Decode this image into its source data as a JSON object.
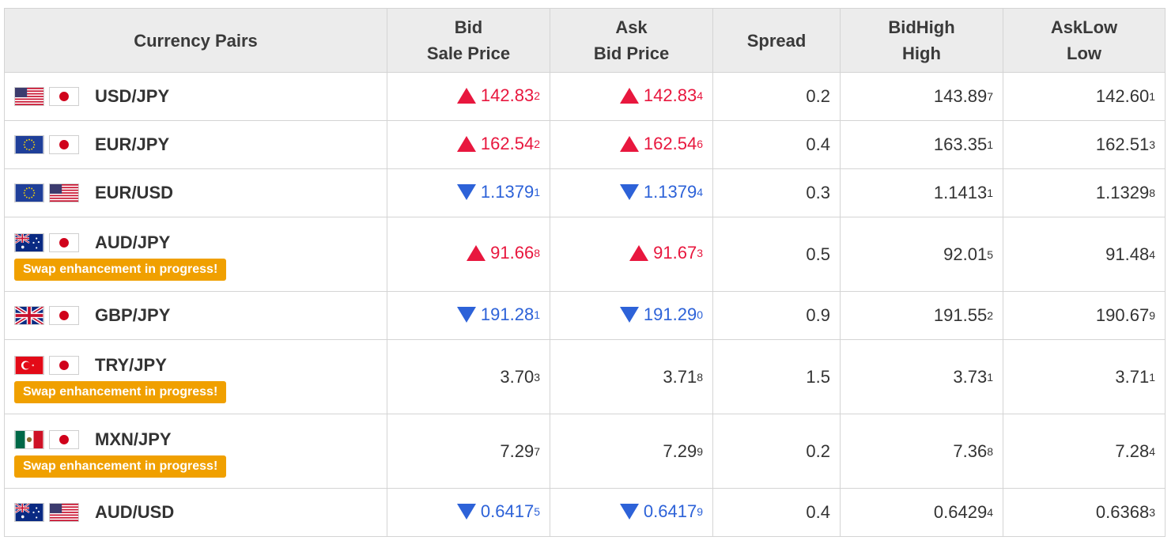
{
  "headers": {
    "pairs": "Currency Pairs",
    "bid_l1": "Bid",
    "bid_l2": "Sale Price",
    "ask_l1": "Ask",
    "ask_l2": "Bid Price",
    "spread": "Spread",
    "bidhigh_l1": "BidHigh",
    "bidhigh_l2": "High",
    "asklow_l1": "AskLow",
    "asklow_l2": "Low"
  },
  "badge_text": "Swap enhancement in progress!",
  "colors": {
    "up": "#e8173e",
    "down": "#2d62d8",
    "badge": "#f0a000"
  },
  "rows": [
    {
      "pair": "USD/JPY",
      "flags": [
        "us-flag-icon",
        "jp-flag-icon"
      ],
      "badge": false,
      "bid": {
        "main": "142.83",
        "pip": "2",
        "dir": "up"
      },
      "ask": {
        "main": "142.83",
        "pip": "4",
        "dir": "up"
      },
      "spread": "0.2",
      "high": {
        "main": "143.89",
        "pip": "7"
      },
      "low": {
        "main": "142.60",
        "pip": "1"
      }
    },
    {
      "pair": "EUR/JPY",
      "flags": [
        "eu-flag-icon",
        "jp-flag-icon"
      ],
      "badge": false,
      "bid": {
        "main": "162.54",
        "pip": "2",
        "dir": "up"
      },
      "ask": {
        "main": "162.54",
        "pip": "6",
        "dir": "up"
      },
      "spread": "0.4",
      "high": {
        "main": "163.35",
        "pip": "1"
      },
      "low": {
        "main": "162.51",
        "pip": "3"
      }
    },
    {
      "pair": "EUR/USD",
      "flags": [
        "eu-flag-icon",
        "us-flag-icon"
      ],
      "badge": false,
      "bid": {
        "main": "1.1379",
        "pip": "1",
        "dir": "down"
      },
      "ask": {
        "main": "1.1379",
        "pip": "4",
        "dir": "down"
      },
      "spread": "0.3",
      "high": {
        "main": "1.1413",
        "pip": "1"
      },
      "low": {
        "main": "1.1329",
        "pip": "8"
      }
    },
    {
      "pair": "AUD/JPY",
      "flags": [
        "au-flag-icon",
        "jp-flag-icon"
      ],
      "badge": true,
      "bid": {
        "main": "91.66",
        "pip": "8",
        "dir": "up"
      },
      "ask": {
        "main": "91.67",
        "pip": "3",
        "dir": "up"
      },
      "spread": "0.5",
      "high": {
        "main": "92.01",
        "pip": "5"
      },
      "low": {
        "main": "91.48",
        "pip": "4"
      }
    },
    {
      "pair": "GBP/JPY",
      "flags": [
        "gb-flag-icon",
        "jp-flag-icon"
      ],
      "badge": false,
      "bid": {
        "main": "191.28",
        "pip": "1",
        "dir": "down"
      },
      "ask": {
        "main": "191.29",
        "pip": "0",
        "dir": "down"
      },
      "spread": "0.9",
      "high": {
        "main": "191.55",
        "pip": "2"
      },
      "low": {
        "main": "190.67",
        "pip": "9"
      }
    },
    {
      "pair": "TRY/JPY",
      "flags": [
        "tr-flag-icon",
        "jp-flag-icon"
      ],
      "badge": true,
      "bid": {
        "main": "3.70",
        "pip": "3",
        "dir": "none"
      },
      "ask": {
        "main": "3.71",
        "pip": "8",
        "dir": "none"
      },
      "spread": "1.5",
      "high": {
        "main": "3.73",
        "pip": "1"
      },
      "low": {
        "main": "3.71",
        "pip": "1"
      }
    },
    {
      "pair": "MXN/JPY",
      "flags": [
        "mx-flag-icon",
        "jp-flag-icon"
      ],
      "badge": true,
      "bid": {
        "main": "7.29",
        "pip": "7",
        "dir": "none"
      },
      "ask": {
        "main": "7.29",
        "pip": "9",
        "dir": "none"
      },
      "spread": "0.2",
      "high": {
        "main": "7.36",
        "pip": "8"
      },
      "low": {
        "main": "7.28",
        "pip": "4"
      }
    },
    {
      "pair": "AUD/USD",
      "flags": [
        "au-flag-icon",
        "us-flag-icon"
      ],
      "badge": false,
      "bid": {
        "main": "0.6417",
        "pip": "5",
        "dir": "down"
      },
      "ask": {
        "main": "0.6417",
        "pip": "9",
        "dir": "down"
      },
      "spread": "0.4",
      "high": {
        "main": "0.6429",
        "pip": "4"
      },
      "low": {
        "main": "0.6368",
        "pip": "3"
      }
    }
  ]
}
